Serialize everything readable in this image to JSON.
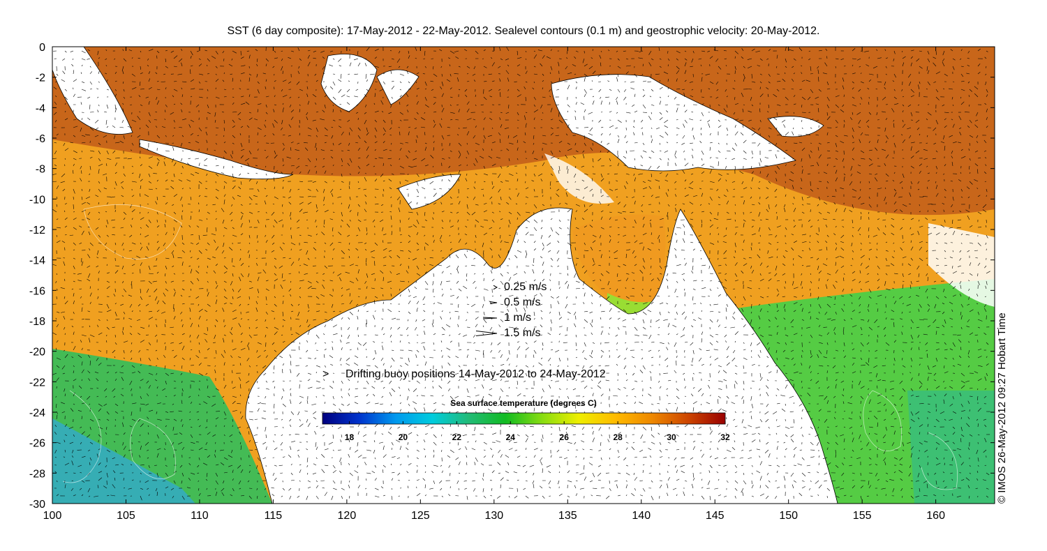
{
  "title": "SST (6 day composite): 17-May-2012 - 22-May-2012. Sealevel contours (0.1 m) and geostrophic velocity: 20-May-2012.",
  "axes": {
    "x_ticks": [
      "100",
      "105",
      "110",
      "115",
      "120",
      "125",
      "130",
      "135",
      "140",
      "145",
      "150",
      "155",
      "160"
    ],
    "y_ticks": [
      "0",
      "-2",
      "-4",
      "-6",
      "-8",
      "-10",
      "-12",
      "-14",
      "-16",
      "-18",
      "-20",
      "-22",
      "-24",
      "-26",
      "-28",
      "-30"
    ],
    "x_range": [
      100,
      164
    ],
    "y_range": [
      -30,
      0
    ]
  },
  "velocity_legend": {
    "items": [
      {
        "label": "0.25 m/s",
        "speed": 0.25
      },
      {
        "label": "0.5 m/s",
        "speed": 0.5
      },
      {
        "label": "1 m/s",
        "speed": 1
      },
      {
        "label": "1.5 m/s",
        "speed": 1.5
      }
    ]
  },
  "buoy_legend": {
    "label": "Drifting buoy positions 14-May-2012 to 24-May-2012",
    "marker": ">",
    "color": "#e040e0"
  },
  "colorbar": {
    "title": "Sea surface temperature (degrees C)",
    "ticks": [
      "18",
      "20",
      "22",
      "24",
      "26",
      "28",
      "30",
      "32"
    ],
    "range": [
      17,
      32
    ],
    "stops": [
      "#00007f",
      "#0033cc",
      "#0099ee",
      "#00ccdd",
      "#22bb77",
      "#11bb22",
      "#88dd11",
      "#eeee00",
      "#ffbb00",
      "#ee8800",
      "#cc4400",
      "#990000"
    ]
  },
  "credit": "© IMOS 26-May-2012 09:27 Hobart Time"
}
